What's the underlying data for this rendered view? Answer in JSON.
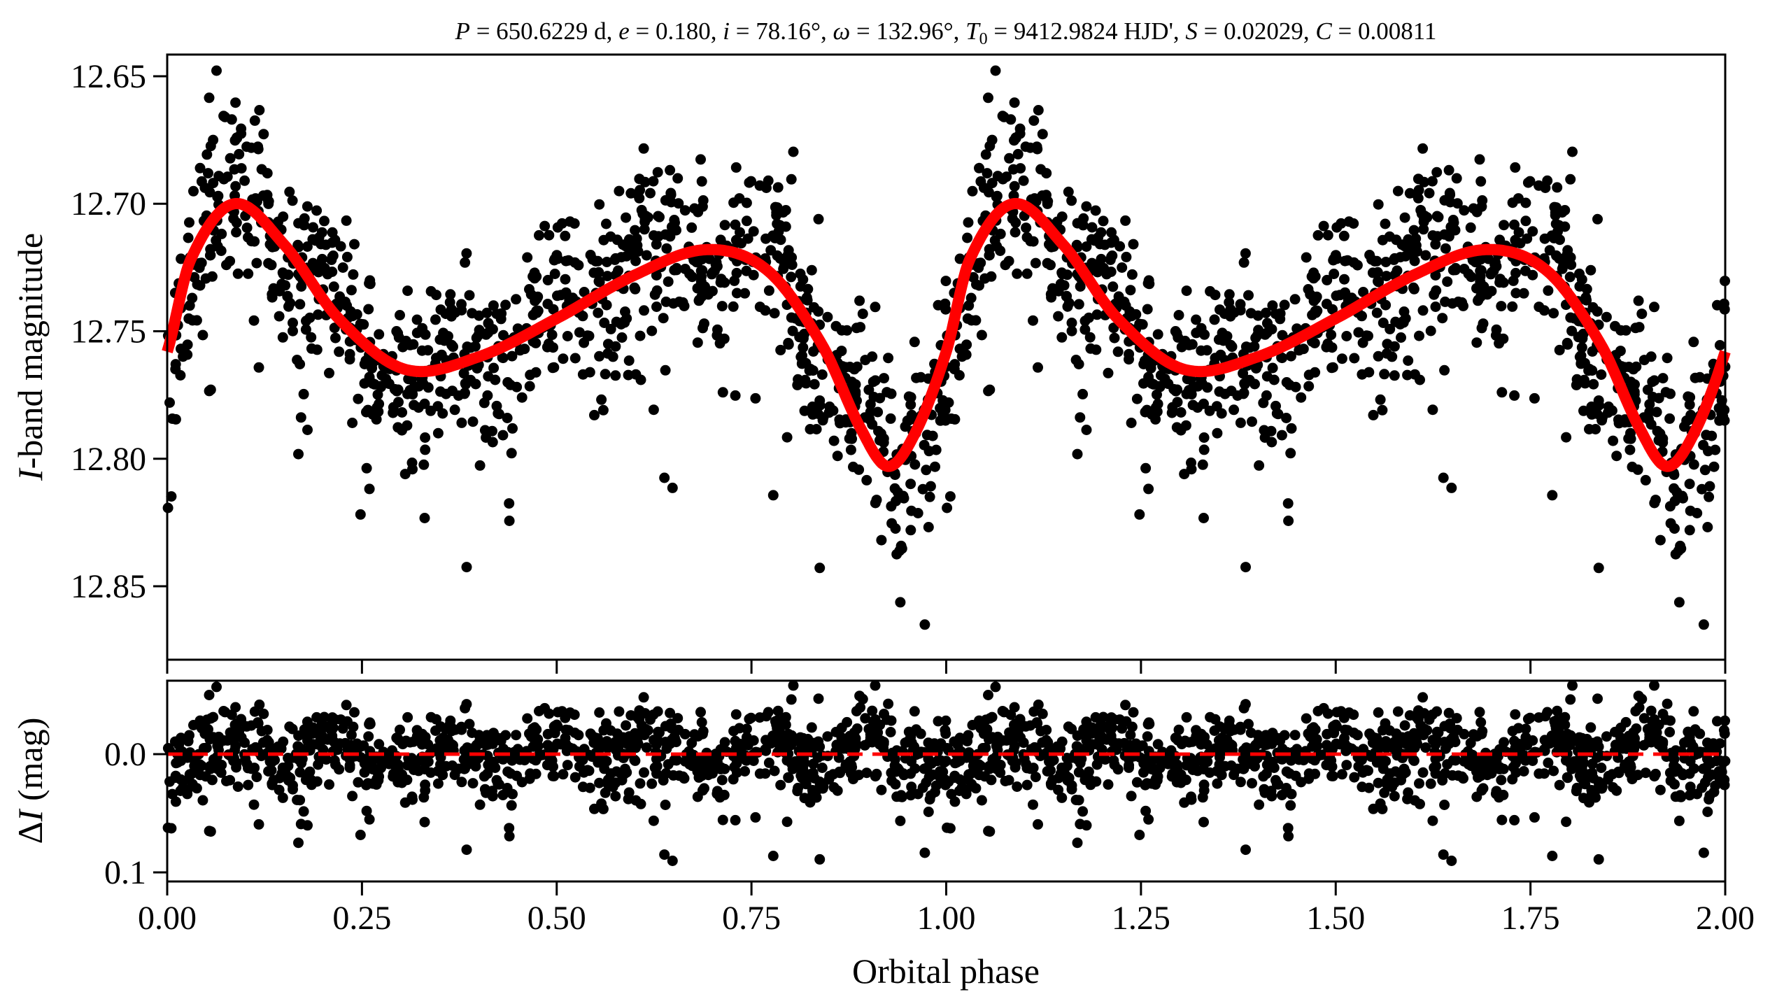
{
  "chart_data": [
    {
      "type": "scatter",
      "panel": "light-curve",
      "title": "P = 650.6229 d, e = 0.180, i = 78.16°, ω = 132.96°, T0 = 9412.9824 HJD', S = 0.02029, C = 0.00811",
      "title_parts": {
        "p_sym": "P",
        "p_val": " = 650.6229 d, ",
        "e_sym": "e",
        "e_val": " = 0.180, ",
        "i_sym": "i",
        "i_val": " = 78.16°, ",
        "w_sym": "ω",
        "w_val": " = 132.96°, ",
        "t_sym": "T",
        "t_sub": "0",
        "t_val": " = 9412.9824 HJD', ",
        "s_sym": "S",
        "s_val": " = 0.02029, ",
        "c_sym": "C",
        "c_val": " = 0.00811"
      },
      "xlabel": "Orbital phase",
      "ylabel_italic": "I",
      "ylabel_rest": "-band magnitude",
      "xlim": [
        0,
        2
      ],
      "ylim": [
        12.8788,
        12.6415
      ],
      "y_inverted": true,
      "yticks": [
        12.65,
        12.7,
        12.75,
        12.8,
        12.85
      ],
      "ytick_labels": [
        "12.65",
        "12.70",
        "12.75",
        "12.80",
        "12.85"
      ],
      "xticks": [
        0,
        0.25,
        0.5,
        0.75,
        1.0,
        1.25,
        1.5,
        1.75,
        2.0
      ],
      "grid": false,
      "series": [
        {
          "name": "observations",
          "kind": "scatter",
          "color": "#000000",
          "phase_repeated": true,
          "n_points_per_cycle": 1000,
          "noise_sd_mag": 0.017,
          "outlier_fraction": 0.03,
          "seed": 650
        },
        {
          "name": "model",
          "kind": "line",
          "color": "#ff0000",
          "knots_phase": [
            0.0,
            0.03,
            0.086,
            0.15,
            0.22,
            0.306,
            0.4,
            0.5,
            0.6,
            0.692,
            0.77,
            0.84,
            0.89,
            0.925,
            0.96,
            1.0
          ],
          "knots_mag": [
            12.758,
            12.722,
            12.7,
            12.716,
            12.745,
            12.765,
            12.76,
            12.745,
            12.728,
            12.718,
            12.726,
            12.755,
            12.788,
            12.803,
            12.79,
            12.758
          ]
        }
      ]
    },
    {
      "type": "scatter",
      "panel": "residuals",
      "xlabel": "Orbital phase",
      "ylabel_delta": "Δ",
      "ylabel_italic": "I",
      "ylabel_rest": " (mag)",
      "xlim": [
        0,
        2
      ],
      "ylim": [
        0.1077,
        -0.0621
      ],
      "y_inverted": true,
      "yticks": [
        0.0,
        0.1
      ],
      "ytick_labels": [
        "0.0",
        "0.1"
      ],
      "xticks": [
        0,
        0.25,
        0.5,
        0.75,
        1.0,
        1.25,
        1.5,
        1.75,
        2.0
      ],
      "xtick_labels": [
        "0.00",
        "0.25",
        "0.50",
        "0.75",
        "1.00",
        "1.25",
        "1.50",
        "1.75",
        "2.00"
      ],
      "zero_line": {
        "value": 0.0,
        "color": "#ff0000",
        "style": "dashed"
      },
      "series": [
        {
          "name": "residuals",
          "kind": "scatter",
          "color": "#000000"
        }
      ]
    }
  ]
}
